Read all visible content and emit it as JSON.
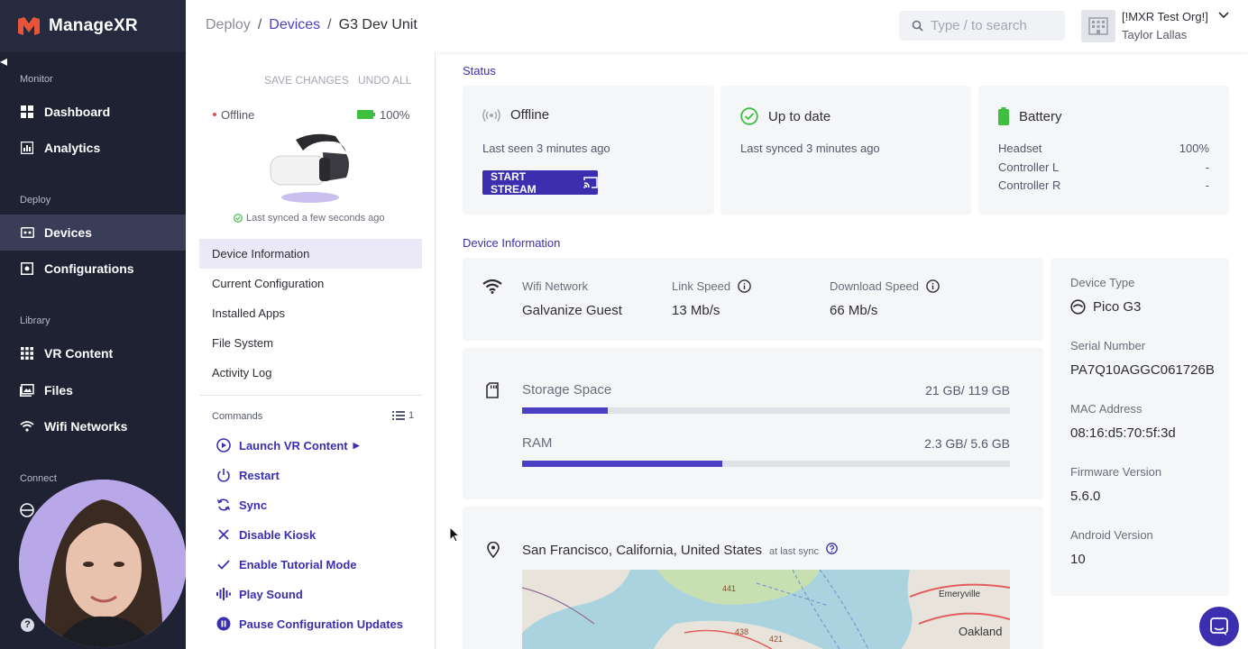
{
  "brand": {
    "name": "ManageXR"
  },
  "sidebar": {
    "sections": {
      "monitor": "Monitor",
      "deploy": "Deploy",
      "library": "Library",
      "connect": "Connect"
    },
    "items": [
      {
        "label": "Dashboard"
      },
      {
        "label": "Analytics"
      },
      {
        "label": "Devices"
      },
      {
        "label": "Configurations"
      },
      {
        "label": "VR Content"
      },
      {
        "label": "Files"
      },
      {
        "label": "Wifi Networks"
      }
    ]
  },
  "header": {
    "breadcrumb": {
      "root": "Deploy",
      "section": "Devices",
      "current": "G3 Dev Unit",
      "sep": "/"
    },
    "search_placeholder": "Type / to search",
    "org_name": "[!MXR Test Org!]",
    "user_name": "Taylor Lallas"
  },
  "device_panel": {
    "save_label": "SAVE CHANGES",
    "undo_label": "UNDO ALL",
    "status": "Offline",
    "battery": "100%",
    "synced": "Last synced a few seconds ago",
    "menu": [
      {
        "label": "Device Information"
      },
      {
        "label": "Current Configuration"
      },
      {
        "label": "Installed Apps"
      },
      {
        "label": "File System"
      },
      {
        "label": "Activity Log"
      }
    ],
    "commands_label": "Commands",
    "commands_count": "1",
    "commands": [
      {
        "label": "Launch VR Content"
      },
      {
        "label": "Restart"
      },
      {
        "label": "Sync"
      },
      {
        "label": "Disable Kiosk"
      },
      {
        "label": "Enable Tutorial Mode"
      },
      {
        "label": "Play Sound"
      },
      {
        "label": "Pause Configuration Updates"
      }
    ]
  },
  "status": {
    "title": "Status",
    "offline_card": {
      "title": "Offline",
      "sub": "Last seen 3 minutes ago",
      "stream_label": "START STREAM"
    },
    "update_card": {
      "title": "Up to date",
      "sub": "Last synced 3 minutes ago"
    },
    "battery_card": {
      "title": "Battery",
      "rows": [
        {
          "name": "Headset",
          "value": "100%"
        },
        {
          "name": "Controller L",
          "value": "-"
        },
        {
          "name": "Controller R",
          "value": "-"
        }
      ]
    }
  },
  "device_info": {
    "title": "Device Information",
    "wifi_label": "Wifi Network",
    "wifi_value": "Galvanize Guest",
    "link_label": "Link Speed",
    "link_value": "13 Mb/s",
    "download_label": "Download Speed",
    "download_value": "66 Mb/s",
    "storage_label": "Storage Space",
    "storage_value": "21 GB/ 119 GB",
    "storage_fraction": 0.176,
    "ram_label": "RAM",
    "ram_value": "2.3 GB/ 5.6 GB",
    "ram_fraction": 0.411,
    "location": "San Francisco, California, United States",
    "location_note": "at last sync",
    "map_labels": {
      "city_ne": "Emeryville",
      "city_e": "Oakland",
      "road1": "441",
      "road2": "438",
      "road3": "421"
    },
    "device_type_label": "Device Type",
    "device_type_value": "Pico G3",
    "serial_label": "Serial Number",
    "serial_value": "PA7Q10AGGC061726B",
    "mac_label": "MAC Address",
    "mac_value": "08:16:d5:70:5f:3d",
    "firmware_label": "Firmware Version",
    "firmware_value": "5.6.0",
    "android_label": "Android Version",
    "android_value": "10"
  },
  "colors": {
    "accent": "#3b2fb0",
    "sidebar_bg": "#1f2233",
    "battery_green": "#3fbf3f",
    "status_red": "#d9534f"
  }
}
